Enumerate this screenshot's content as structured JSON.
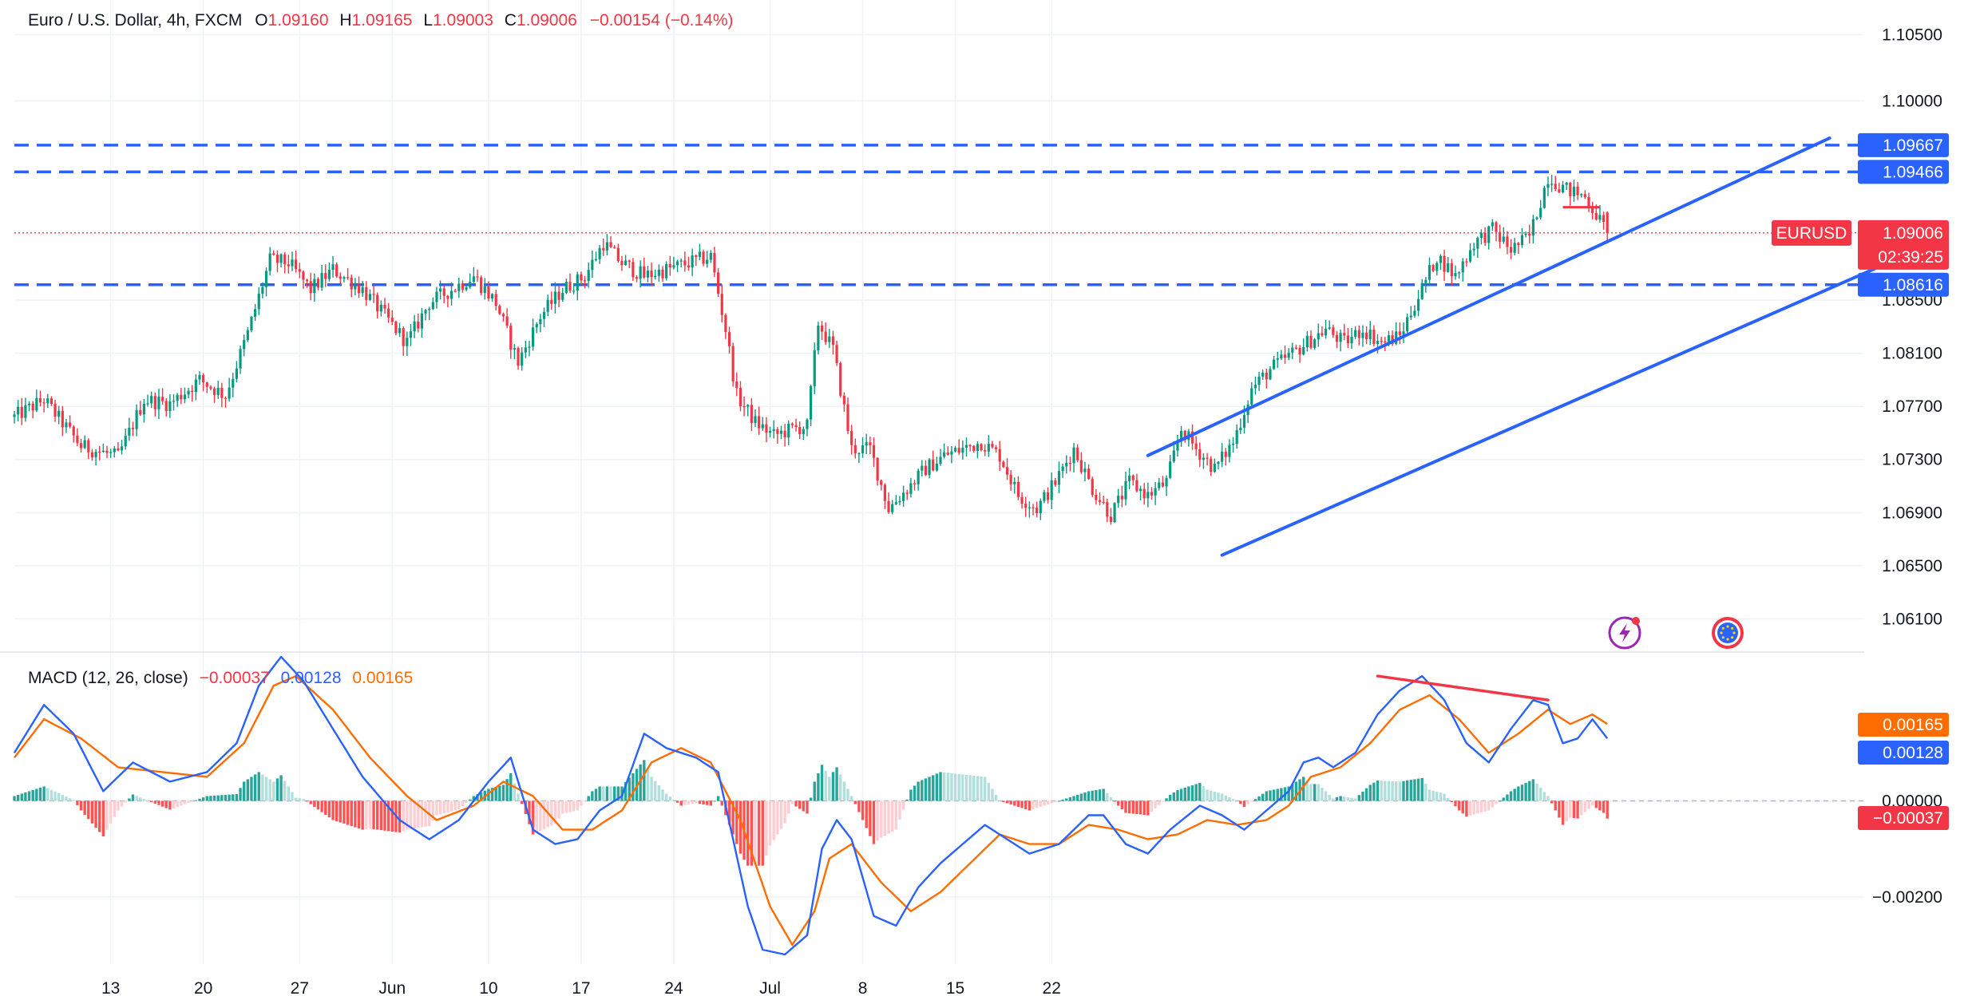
{
  "header": {
    "symbol": "Euro / U.S. Dollar, 4h, FXCM",
    "o_label": "O",
    "o_value": "1.09160",
    "h_label": "H",
    "h_value": "1.09165",
    "l_label": "L",
    "l_value": "1.09003",
    "c_label": "C",
    "c_value": "1.09006",
    "change": "−0.00154 (−0.14%)"
  },
  "macd_header": {
    "title": "MACD (12, 26, close)",
    "hist_value": "−0.00037",
    "macd_value": "0.00128",
    "signal_value": "0.00165"
  },
  "colors": {
    "up": "#089981",
    "down": "#f23645",
    "line_blue": "#2962ff",
    "macd_line": "#2962ff",
    "signal_line": "#ff6d00",
    "hist_up_strong": "#26a69a",
    "hist_up_weak": "#b2dfdb",
    "hist_down_strong": "#ff5252",
    "hist_down_weak": "#ffcdd2",
    "text": "#131722",
    "grid": "#f0f3fa"
  },
  "icons": [
    "lightning-icon",
    "eu-flag-icon"
  ],
  "chart_data": [
    {
      "type": "candlestick",
      "symbol": "EURUSD",
      "timeframe": "4h",
      "x_tick_labels": [
        "13",
        "20",
        "27",
        "Jun",
        "10",
        "17",
        "24",
        "Jul",
        "8",
        "15",
        "22"
      ],
      "y_tick_labels": [
        "1.10500",
        "1.10000",
        "1.08500",
        "1.08100",
        "1.07700",
        "1.07300",
        "1.06900",
        "1.06500",
        "1.06100"
      ],
      "ylim": [
        1.0585,
        1.1076
      ],
      "last_price": {
        "label": "EURUSD",
        "value": "1.09006",
        "countdown": "02:39:25"
      },
      "horizontal_levels": [
        {
          "label": "1.09667",
          "value": 1.09667,
          "style": "dashed"
        },
        {
          "label": "1.09466",
          "value": 1.09466,
          "style": "dashed"
        },
        {
          "label": "1.08616",
          "value": 1.08616,
          "style": "dashed"
        }
      ],
      "ohlc_last": {
        "open": 1.0916,
        "high": 1.09165,
        "low": 1.09003,
        "close": 1.09006
      },
      "price_path": [
        {
          "bar": 0,
          "price": 1.0762
        },
        {
          "bar": 8,
          "price": 1.0775
        },
        {
          "bar": 18,
          "price": 1.074
        },
        {
          "bar": 28,
          "price": 1.0732
        },
        {
          "bar": 35,
          "price": 1.0775
        },
        {
          "bar": 42,
          "price": 1.0772
        },
        {
          "bar": 50,
          "price": 1.079
        },
        {
          "bar": 57,
          "price": 1.0778
        },
        {
          "bar": 63,
          "price": 1.0825
        },
        {
          "bar": 69,
          "price": 1.088
        },
        {
          "bar": 74,
          "price": 1.0878
        },
        {
          "bar": 80,
          "price": 1.0858
        },
        {
          "bar": 86,
          "price": 1.0873
        },
        {
          "bar": 94,
          "price": 1.0858
        },
        {
          "bar": 100,
          "price": 1.0838
        },
        {
          "bar": 106,
          "price": 1.0818
        },
        {
          "bar": 112,
          "price": 1.0848
        },
        {
          "bar": 118,
          "price": 1.0858
        },
        {
          "bar": 124,
          "price": 1.0868
        },
        {
          "bar": 130,
          "price": 1.0848
        },
        {
          "bar": 136,
          "price": 1.0803
        },
        {
          "bar": 142,
          "price": 1.0838
        },
        {
          "bar": 148,
          "price": 1.0858
        },
        {
          "bar": 154,
          "price": 1.0868
        },
        {
          "bar": 159,
          "price": 1.0893
        },
        {
          "bar": 164,
          "price": 1.0878
        },
        {
          "bar": 170,
          "price": 1.0868
        },
        {
          "bar": 176,
          "price": 1.0873
        },
        {
          "bar": 182,
          "price": 1.0878
        },
        {
          "bar": 188,
          "price": 1.0883
        },
        {
          "bar": 192,
          "price": 1.0828
        },
        {
          "bar": 195,
          "price": 1.0778
        },
        {
          "bar": 200,
          "price": 1.0758
        },
        {
          "bar": 205,
          "price": 1.0748
        },
        {
          "bar": 210,
          "price": 1.0753
        },
        {
          "bar": 214,
          "price": 1.0755
        },
        {
          "bar": 217,
          "price": 1.0833
        },
        {
          "bar": 221,
          "price": 1.0813
        },
        {
          "bar": 226,
          "price": 1.0738
        },
        {
          "bar": 231,
          "price": 1.0738
        },
        {
          "bar": 236,
          "price": 1.0693
        },
        {
          "bar": 241,
          "price": 1.0708
        },
        {
          "bar": 246,
          "price": 1.0723
        },
        {
          "bar": 251,
          "price": 1.0733
        },
        {
          "bar": 256,
          "price": 1.0738
        },
        {
          "bar": 261,
          "price": 1.0743
        },
        {
          "bar": 266,
          "price": 1.0733
        },
        {
          "bar": 271,
          "price": 1.0703
        },
        {
          "bar": 276,
          "price": 1.0693
        },
        {
          "bar": 281,
          "price": 1.0713
        },
        {
          "bar": 286,
          "price": 1.0738
        },
        {
          "bar": 291,
          "price": 1.0708
        },
        {
          "bar": 296,
          "price": 1.0688
        },
        {
          "bar": 301,
          "price": 1.0713
        },
        {
          "bar": 306,
          "price": 1.0703
        },
        {
          "bar": 311,
          "price": 1.0713
        },
        {
          "bar": 315,
          "price": 1.0753
        },
        {
          "bar": 319,
          "price": 1.0738
        },
        {
          "bar": 324,
          "price": 1.0723
        },
        {
          "bar": 329,
          "price": 1.0743
        },
        {
          "bar": 334,
          "price": 1.0783
        },
        {
          "bar": 339,
          "price": 1.0798
        },
        {
          "bar": 344,
          "price": 1.0808
        },
        {
          "bar": 349,
          "price": 1.0818
        },
        {
          "bar": 354,
          "price": 1.0828
        },
        {
          "bar": 359,
          "price": 1.0818
        },
        {
          "bar": 364,
          "price": 1.0828
        },
        {
          "bar": 369,
          "price": 1.0818
        },
        {
          "bar": 374,
          "price": 1.0823
        },
        {
          "bar": 379,
          "price": 1.0853
        },
        {
          "bar": 384,
          "price": 1.0883
        },
        {
          "bar": 389,
          "price": 1.0868
        },
        {
          "bar": 394,
          "price": 1.0893
        },
        {
          "bar": 399,
          "price": 1.0903
        },
        {
          "bar": 404,
          "price": 1.0888
        },
        {
          "bar": 409,
          "price": 1.0898
        },
        {
          "bar": 414,
          "price": 1.0943
        },
        {
          "bar": 419,
          "price": 1.0933
        },
        {
          "bar": 424,
          "price": 1.0928
        },
        {
          "bar": 427,
          "price": 1.0915
        },
        {
          "bar": 430,
          "price": 1.09
        }
      ],
      "channel": {
        "upper": [
          {
            "bar": 306,
            "price": 1.0733
          },
          {
            "bar": 490,
            "price": 1.0972
          }
        ],
        "lower": [
          {
            "bar": 326,
            "price": 1.0658
          },
          {
            "bar": 518,
            "price": 1.0893
          }
        ]
      }
    },
    {
      "type": "macd",
      "parameters": "12, 26, close",
      "y_tick_labels": [
        "0.00000",
        "−0.00200"
      ],
      "ylim": [
        -0.0034,
        0.0031
      ],
      "value_badges": [
        {
          "label": "0.00165",
          "series": "signal"
        },
        {
          "label": "0.00128",
          "series": "macd"
        },
        {
          "label": "−0.00037",
          "series": "histogram"
        }
      ],
      "macd_path": [
        {
          "bar": 0,
          "v": 0.001
        },
        {
          "bar": 8,
          "v": 0.002
        },
        {
          "bar": 16,
          "v": 0.0014
        },
        {
          "bar": 24,
          "v": 0.0002
        },
        {
          "bar": 32,
          "v": 0.0008
        },
        {
          "bar": 42,
          "v": 0.0004
        },
        {
          "bar": 52,
          "v": 0.0006
        },
        {
          "bar": 60,
          "v": 0.0012
        },
        {
          "bar": 66,
          "v": 0.0024
        },
        {
          "bar": 72,
          "v": 0.003
        },
        {
          "bar": 78,
          "v": 0.0025
        },
        {
          "bar": 86,
          "v": 0.0015
        },
        {
          "bar": 94,
          "v": 0.0005
        },
        {
          "bar": 104,
          "v": -0.0004
        },
        {
          "bar": 112,
          "v": -0.0008
        },
        {
          "bar": 120,
          "v": -0.0004
        },
        {
          "bar": 128,
          "v": 0.0004
        },
        {
          "bar": 134,
          "v": 0.0009
        },
        {
          "bar": 140,
          "v": -0.0006
        },
        {
          "bar": 146,
          "v": -0.0009
        },
        {
          "bar": 152,
          "v": -0.0008
        },
        {
          "bar": 158,
          "v": -0.0002
        },
        {
          "bar": 164,
          "v": 0.0001
        },
        {
          "bar": 170,
          "v": 0.0014
        },
        {
          "bar": 176,
          "v": 0.0011
        },
        {
          "bar": 184,
          "v": 0.0009
        },
        {
          "bar": 190,
          "v": 0.0006
        },
        {
          "bar": 194,
          "v": -0.0008
        },
        {
          "bar": 198,
          "v": -0.0022
        },
        {
          "bar": 202,
          "v": -0.0031
        },
        {
          "bar": 208,
          "v": -0.0032
        },
        {
          "bar": 214,
          "v": -0.0028
        },
        {
          "bar": 218,
          "v": -0.001
        },
        {
          "bar": 222,
          "v": -0.0004
        },
        {
          "bar": 226,
          "v": -0.0008
        },
        {
          "bar": 232,
          "v": -0.0024
        },
        {
          "bar": 238,
          "v": -0.0026
        },
        {
          "bar": 244,
          "v": -0.0018
        },
        {
          "bar": 250,
          "v": -0.0013
        },
        {
          "bar": 256,
          "v": -0.0009
        },
        {
          "bar": 262,
          "v": -0.0005
        },
        {
          "bar": 268,
          "v": -0.0008
        },
        {
          "bar": 274,
          "v": -0.0011
        },
        {
          "bar": 282,
          "v": -0.0009
        },
        {
          "bar": 290,
          "v": -0.0003
        },
        {
          "bar": 294,
          "v": -0.0003
        },
        {
          "bar": 300,
          "v": -0.0009
        },
        {
          "bar": 306,
          "v": -0.0011
        },
        {
          "bar": 312,
          "v": -0.0006
        },
        {
          "bar": 320,
          "v": -0.0001
        },
        {
          "bar": 326,
          "v": -0.0003
        },
        {
          "bar": 332,
          "v": -0.0006
        },
        {
          "bar": 338,
          "v": -0.0002
        },
        {
          "bar": 344,
          "v": 0.0002
        },
        {
          "bar": 348,
          "v": 0.0008
        },
        {
          "bar": 352,
          "v": 0.0009
        },
        {
          "bar": 356,
          "v": 0.0007
        },
        {
          "bar": 362,
          "v": 0.001
        },
        {
          "bar": 368,
          "v": 0.0018
        },
        {
          "bar": 374,
          "v": 0.0023
        },
        {
          "bar": 380,
          "v": 0.0026
        },
        {
          "bar": 386,
          "v": 0.0021
        },
        {
          "bar": 392,
          "v": 0.0012
        },
        {
          "bar": 398,
          "v": 0.0008
        },
        {
          "bar": 404,
          "v": 0.0015
        },
        {
          "bar": 410,
          "v": 0.0021
        },
        {
          "bar": 414,
          "v": 0.002
        },
        {
          "bar": 418,
          "v": 0.0012
        },
        {
          "bar": 422,
          "v": 0.0013
        },
        {
          "bar": 426,
          "v": 0.0017
        },
        {
          "bar": 430,
          "v": 0.0013
        }
      ],
      "signal_path": [
        {
          "bar": 0,
          "v": 0.0009
        },
        {
          "bar": 8,
          "v": 0.0017
        },
        {
          "bar": 18,
          "v": 0.0013
        },
        {
          "bar": 28,
          "v": 0.0007
        },
        {
          "bar": 40,
          "v": 0.0006
        },
        {
          "bar": 52,
          "v": 0.0005
        },
        {
          "bar": 62,
          "v": 0.0012
        },
        {
          "bar": 70,
          "v": 0.0024
        },
        {
          "bar": 76,
          "v": 0.0026
        },
        {
          "bar": 86,
          "v": 0.0019
        },
        {
          "bar": 96,
          "v": 0.0009
        },
        {
          "bar": 106,
          "v": 0.0001
        },
        {
          "bar": 114,
          "v": -0.0004
        },
        {
          "bar": 124,
          "v": -0.0001
        },
        {
          "bar": 132,
          "v": 0.0004
        },
        {
          "bar": 140,
          "v": 0.0001
        },
        {
          "bar": 148,
          "v": -0.0006
        },
        {
          "bar": 156,
          "v": -0.0006
        },
        {
          "bar": 164,
          "v": -0.0002
        },
        {
          "bar": 172,
          "v": 0.0008
        },
        {
          "bar": 180,
          "v": 0.0011
        },
        {
          "bar": 188,
          "v": 0.0008
        },
        {
          "bar": 196,
          "v": -0.0004
        },
        {
          "bar": 204,
          "v": -0.0022
        },
        {
          "bar": 210,
          "v": -0.003
        },
        {
          "bar": 216,
          "v": -0.0023
        },
        {
          "bar": 220,
          "v": -0.0012
        },
        {
          "bar": 226,
          "v": -0.0009
        },
        {
          "bar": 234,
          "v": -0.0017
        },
        {
          "bar": 242,
          "v": -0.0023
        },
        {
          "bar": 250,
          "v": -0.0019
        },
        {
          "bar": 258,
          "v": -0.0013
        },
        {
          "bar": 266,
          "v": -0.0007
        },
        {
          "bar": 274,
          "v": -0.0009
        },
        {
          "bar": 282,
          "v": -0.0009
        },
        {
          "bar": 290,
          "v": -0.0005
        },
        {
          "bar": 298,
          "v": -0.0006
        },
        {
          "bar": 306,
          "v": -0.0008
        },
        {
          "bar": 314,
          "v": -0.0007
        },
        {
          "bar": 322,
          "v": -0.0004
        },
        {
          "bar": 330,
          "v": -0.0005
        },
        {
          "bar": 338,
          "v": -0.0004
        },
        {
          "bar": 344,
          "v": -0.0001
        },
        {
          "bar": 350,
          "v": 0.0005
        },
        {
          "bar": 358,
          "v": 0.0007
        },
        {
          "bar": 366,
          "v": 0.0012
        },
        {
          "bar": 374,
          "v": 0.0019
        },
        {
          "bar": 382,
          "v": 0.0022
        },
        {
          "bar": 390,
          "v": 0.0017
        },
        {
          "bar": 398,
          "v": 0.001
        },
        {
          "bar": 406,
          "v": 0.0014
        },
        {
          "bar": 414,
          "v": 0.0019
        },
        {
          "bar": 420,
          "v": 0.0016
        },
        {
          "bar": 426,
          "v": 0.0018
        },
        {
          "bar": 430,
          "v": 0.0016
        }
      ],
      "divergence_line": [
        {
          "bar": 368,
          "v": 0.0026
        },
        {
          "bar": 414,
          "v": 0.0021
        }
      ]
    }
  ]
}
